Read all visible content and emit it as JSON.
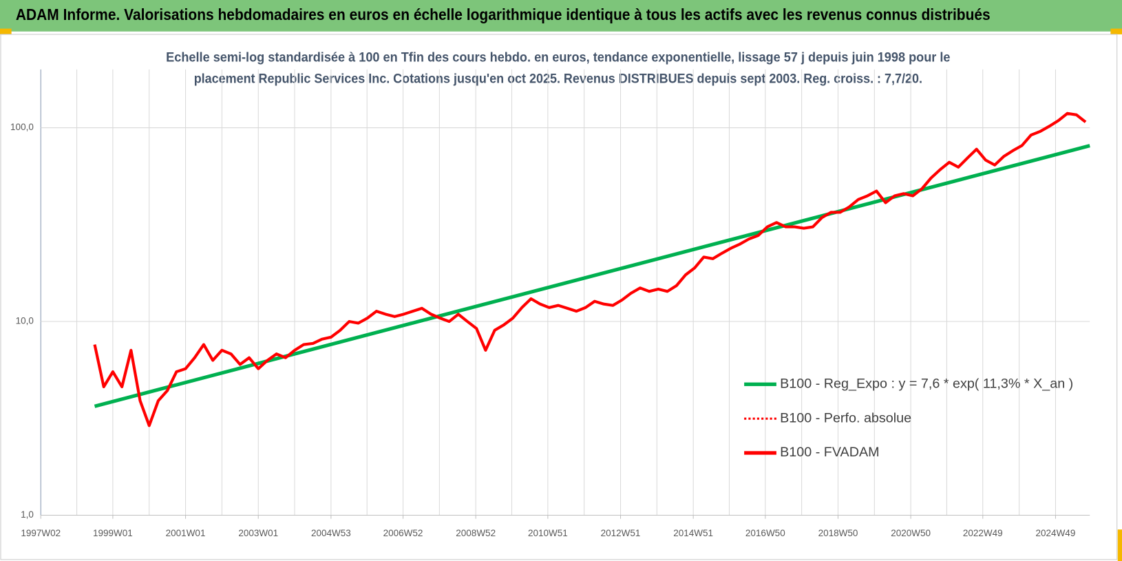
{
  "chart_data": {
    "type": "line",
    "header": "ADAM Informe. Valorisations hebdomadaires en euros en échelle logarithmique identique à tous les actifs avec les revenus connus distribués",
    "subtitle": [
      "Echelle semi-log standardisée à 100 en Tfin des cours hebdo. en euros, tendance exponentielle, lissage 57 j depuis juin 1998 pour le",
      "placement Republic Services Inc. Cotations jusqu'en oct 2025. Revenus DISTRIBUES depuis sept 2003. Reg. croiss. : 7,7/20."
    ],
    "log_scale": true,
    "grid": true,
    "legend": "right",
    "xlim": [
      "1997W02",
      "2025W46"
    ],
    "xticks": [
      "1997W02",
      "1999W01",
      "2001W01",
      "2003W01",
      "2004W53",
      "2006W52",
      "2008W52",
      "2010W51",
      "2012W51",
      "2014W51",
      "2016W50",
      "2018W50",
      "2020W50",
      "2022W49",
      "2024W49"
    ],
    "ylim": [
      1,
      200
    ],
    "yticks": [
      {
        "value": 1,
        "label": "1,0"
      },
      {
        "value": 10,
        "label": "10,0"
      },
      {
        "value": 100,
        "label": "100,0"
      }
    ],
    "series": [
      {
        "name": "B100 - Reg_Expo : y = 7,6 * exp( 11,3% *  X_an )",
        "color": "#00b050",
        "style": "solid",
        "x": [
          "1998W27",
          "2025W46"
        ],
        "values": [
          3.65,
          80.8
        ]
      },
      {
        "name": "B100 - Perfo. absolue",
        "color": "#ff0000",
        "style": "dotted",
        "x": [],
        "values": []
      },
      {
        "name": "B100 - FVADAM",
        "color": "#ff0000",
        "style": "solid",
        "x": [
          "1998W27",
          "1998W40",
          "1999W01",
          "1999W14",
          "1999W27",
          "1999W40",
          "2000W01",
          "2000W14",
          "2000W27",
          "2000W40",
          "2001W01",
          "2001W14",
          "2001W27",
          "2001W40",
          "2002W01",
          "2002W14",
          "2002W27",
          "2002W40",
          "2003W01",
          "2003W14",
          "2003W27",
          "2003W40",
          "2004W01",
          "2004W14",
          "2004W27",
          "2004W40",
          "2005W01",
          "2005W14",
          "2005W27",
          "2005W40",
          "2006W01",
          "2006W14",
          "2006W27",
          "2006W40",
          "2007W01",
          "2007W14",
          "2007W27",
          "2007W40",
          "2008W01",
          "2008W14",
          "2008W27",
          "2008W40",
          "2009W01",
          "2009W14",
          "2009W27",
          "2009W40",
          "2010W01",
          "2010W14",
          "2010W27",
          "2010W40",
          "2011W01",
          "2011W14",
          "2011W27",
          "2011W40",
          "2012W01",
          "2012W14",
          "2012W27",
          "2012W40",
          "2013W01",
          "2013W14",
          "2013W27",
          "2013W40",
          "2014W01",
          "2014W14",
          "2014W27",
          "2014W40",
          "2015W01",
          "2015W14",
          "2015W27",
          "2015W40",
          "2016W01",
          "2016W14",
          "2016W27",
          "2016W40",
          "2017W01",
          "2017W14",
          "2017W27",
          "2017W40",
          "2018W01",
          "2018W14",
          "2018W27",
          "2018W40",
          "2019W01",
          "2019W14",
          "2019W27",
          "2019W40",
          "2020W01",
          "2020W14",
          "2020W27",
          "2020W40",
          "2021W01",
          "2021W14",
          "2021W27",
          "2021W40",
          "2022W01",
          "2022W14",
          "2022W27",
          "2022W40",
          "2023W01",
          "2023W14",
          "2023W27",
          "2023W40",
          "2024W01",
          "2024W14",
          "2024W27",
          "2024W40",
          "2025W01",
          "2025W14",
          "2025W27",
          "2025W40"
        ],
        "values": [
          7.6,
          4.6,
          5.5,
          4.6,
          7.1,
          3.9,
          2.9,
          3.9,
          4.4,
          5.5,
          5.7,
          6.5,
          7.6,
          6.3,
          7.1,
          6.8,
          6.0,
          6.5,
          5.7,
          6.3,
          6.8,
          6.5,
          7.1,
          7.6,
          7.7,
          8.1,
          8.3,
          9.0,
          10.0,
          9.8,
          10.4,
          11.3,
          10.9,
          10.6,
          10.9,
          11.3,
          11.7,
          10.9,
          10.4,
          10.0,
          10.9,
          10.0,
          9.2,
          7.1,
          9.0,
          9.6,
          10.4,
          11.8,
          13.1,
          12.3,
          11.8,
          12.1,
          11.7,
          11.3,
          11.8,
          12.7,
          12.3,
          12.1,
          12.9,
          14.0,
          14.9,
          14.3,
          14.7,
          14.3,
          15.3,
          17.4,
          18.9,
          21.5,
          21.1,
          22.5,
          23.9,
          25.1,
          26.7,
          27.8,
          30.8,
          32.4,
          30.8,
          30.8,
          30.3,
          30.8,
          34.4,
          36.6,
          36.6,
          39.0,
          42.6,
          44.5,
          47.1,
          41.0,
          44.5,
          45.7,
          44.5,
          48.4,
          55.0,
          60.8,
          66.3,
          62.6,
          69.8,
          77.5,
          68.1,
          64.2,
          71.1,
          76.2,
          80.9,
          91.7,
          95.7,
          101.7,
          108.8,
          118.5,
          116.5,
          107.0
        ]
      }
    ]
  }
}
